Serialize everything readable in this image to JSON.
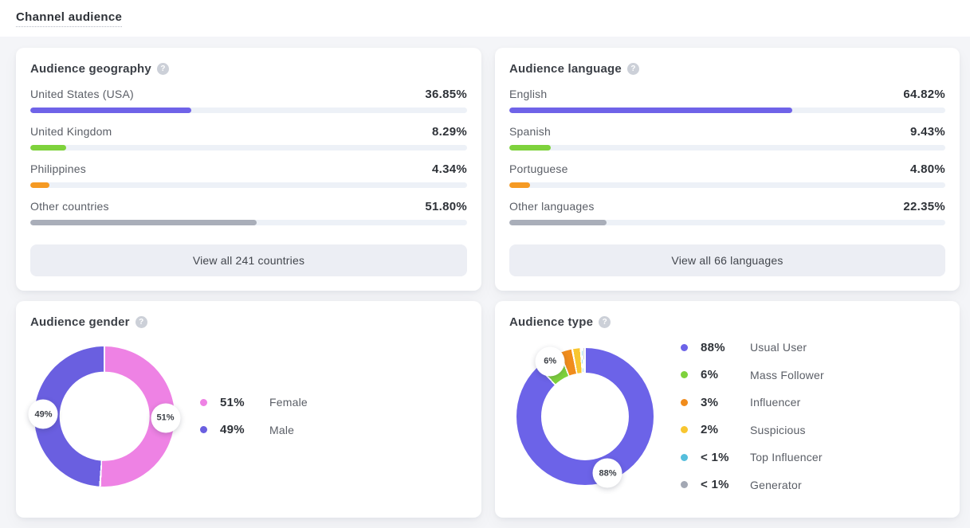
{
  "page": {
    "title": "Channel audience"
  },
  "colors": {
    "accent_purple": "#6f63e8",
    "green": "#7ed23c",
    "orange": "#f59a23",
    "gray": "#a9aeb9",
    "pink": "#ee82e4",
    "yellow": "#f8c630",
    "teal": "#55bedc",
    "track": "#edf1f7",
    "card_bg": "#ffffff",
    "page_bg": "#f4f5f8"
  },
  "cards": {
    "geography": {
      "title": "Audience geography",
      "rows": [
        {
          "label": "United States (USA)",
          "value": "36.85%",
          "pct": 36.85,
          "color": "#6f63e8"
        },
        {
          "label": "United Kingdom",
          "value": "8.29%",
          "pct": 8.29,
          "color": "#7ed23c"
        },
        {
          "label": "Philippines",
          "value": "4.34%",
          "pct": 4.34,
          "color": "#f59a23"
        },
        {
          "label": "Other countries",
          "value": "51.80%",
          "pct": 51.8,
          "color": "#a9aeb9"
        }
      ],
      "button": "View all 241 countries"
    },
    "language": {
      "title": "Audience language",
      "rows": [
        {
          "label": "English",
          "value": "64.82%",
          "pct": 64.82,
          "color": "#6f63e8"
        },
        {
          "label": "Spanish",
          "value": "9.43%",
          "pct": 9.43,
          "color": "#7ed23c"
        },
        {
          "label": "Portuguese",
          "value": "4.80%",
          "pct": 4.8,
          "color": "#f59a23"
        },
        {
          "label": "Other languages",
          "value": "22.35%",
          "pct": 22.35,
          "color": "#a9aeb9"
        }
      ],
      "button": "View all 66 languages"
    },
    "gender": {
      "title": "Audience gender",
      "donut": {
        "segments": [
          {
            "label": "Female",
            "value": 51,
            "color": "#ee82e4"
          },
          {
            "label": "Male",
            "value": 49,
            "color": "#6a5fe0"
          }
        ],
        "badges": [
          {
            "label": "49%",
            "segment": 1,
            "r": 0.87
          },
          {
            "label": "51%",
            "segment": 0,
            "r": 0.87
          }
        ]
      },
      "legend": [
        {
          "value": "51%",
          "label": "Female",
          "color": "#ee82e4"
        },
        {
          "value": "49%",
          "label": "Male",
          "color": "#6a5fe0"
        }
      ]
    },
    "type": {
      "title": "Audience type",
      "donut": {
        "segments": [
          {
            "label": "Usual User",
            "value": 88,
            "color": "#6c63e8"
          },
          {
            "label": "Mass Follower",
            "value": 6,
            "color": "#7ed23c"
          },
          {
            "label": "Influencer",
            "value": 3,
            "color": "#f08c1c"
          },
          {
            "label": "Suspicious",
            "value": 2,
            "color": "#f8c630"
          },
          {
            "label": "Top Influencer",
            "value": 0.5,
            "color": "#55bedc"
          },
          {
            "label": "Generator",
            "value": 0.5,
            "color": "#a3a8b4"
          }
        ],
        "badges": [
          {
            "label": "6%",
            "segment": 1,
            "r": 0.95
          },
          {
            "label": "88%",
            "segment": 0,
            "r": 0.9
          }
        ]
      },
      "legend": [
        {
          "value": "88%",
          "label": "Usual User",
          "color": "#6c63e8"
        },
        {
          "value": "6%",
          "label": "Mass Follower",
          "color": "#7ed23c"
        },
        {
          "value": "3%",
          "label": "Influencer",
          "color": "#f08c1c"
        },
        {
          "value": "2%",
          "label": "Suspicious",
          "color": "#f8c630"
        },
        {
          "value": "< 1%",
          "label": "Top Influencer",
          "color": "#55bedc"
        },
        {
          "value": "< 1%",
          "label": "Generator",
          "color": "#a3a8b4"
        }
      ]
    }
  },
  "chart_data": [
    {
      "type": "bar",
      "title": "Audience geography",
      "categories": [
        "United States (USA)",
        "United Kingdom",
        "Philippines",
        "Other countries"
      ],
      "values": [
        36.85,
        8.29,
        4.34,
        51.8
      ],
      "unit": "%",
      "colors": [
        "#6f63e8",
        "#7ed23c",
        "#f59a23",
        "#a9aeb9"
      ],
      "footer": "View all 241 countries"
    },
    {
      "type": "bar",
      "title": "Audience language",
      "categories": [
        "English",
        "Spanish",
        "Portuguese",
        "Other languages"
      ],
      "values": [
        64.82,
        9.43,
        4.8,
        22.35
      ],
      "unit": "%",
      "colors": [
        "#6f63e8",
        "#7ed23c",
        "#f59a23",
        "#a9aeb9"
      ],
      "footer": "View all 66 languages"
    },
    {
      "type": "pie",
      "title": "Audience gender",
      "labels": [
        "Female",
        "Male"
      ],
      "values": [
        51,
        49
      ],
      "display_values": [
        "51%",
        "49%"
      ],
      "colors": [
        "#ee82e4",
        "#6a5fe0"
      ],
      "legend_position": "right",
      "donut": true
    },
    {
      "type": "pie",
      "title": "Audience type",
      "labels": [
        "Usual User",
        "Mass Follower",
        "Influencer",
        "Suspicious",
        "Top Influencer",
        "Generator"
      ],
      "values": [
        88,
        6,
        3,
        2,
        0.5,
        0.5
      ],
      "display_values": [
        "88%",
        "6%",
        "3%",
        "2%",
        "< 1%",
        "< 1%"
      ],
      "colors": [
        "#6c63e8",
        "#7ed23c",
        "#f08c1c",
        "#f8c630",
        "#55bedc",
        "#a3a8b4"
      ],
      "legend_position": "right",
      "donut": true
    }
  ]
}
